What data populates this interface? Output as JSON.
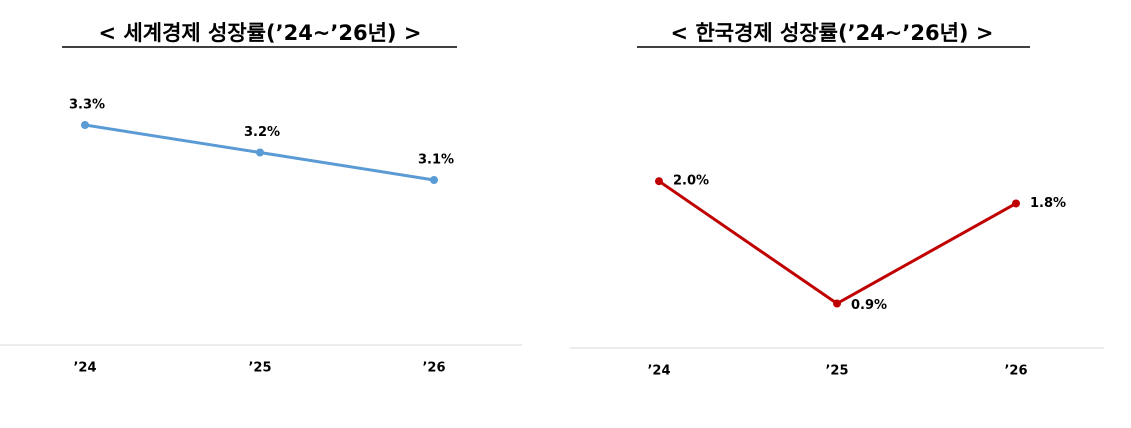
{
  "chart_data": [
    {
      "type": "line",
      "title": "<  세계경제  성장률(’24~’26년)  >",
      "categories": [
        "’24",
        "’25",
        "’26"
      ],
      "values": [
        3.3,
        3.2,
        3.1
      ],
      "value_labels": [
        "3.3%",
        "3.2%",
        "3.1%"
      ],
      "color": "#5b9bd5",
      "ylim": [
        2.5,
        3.5
      ]
    },
    {
      "type": "line",
      "title": "<  한국경제  성장률(’24~’26년)  >",
      "categories": [
        "’24",
        "’25",
        "’26"
      ],
      "values": [
        2.0,
        0.9,
        1.8
      ],
      "value_labels": [
        "2.0%",
        "0.9%",
        "1.8%"
      ],
      "color": "#c00000",
      "ylim": [
        0.5,
        3.0
      ]
    }
  ]
}
